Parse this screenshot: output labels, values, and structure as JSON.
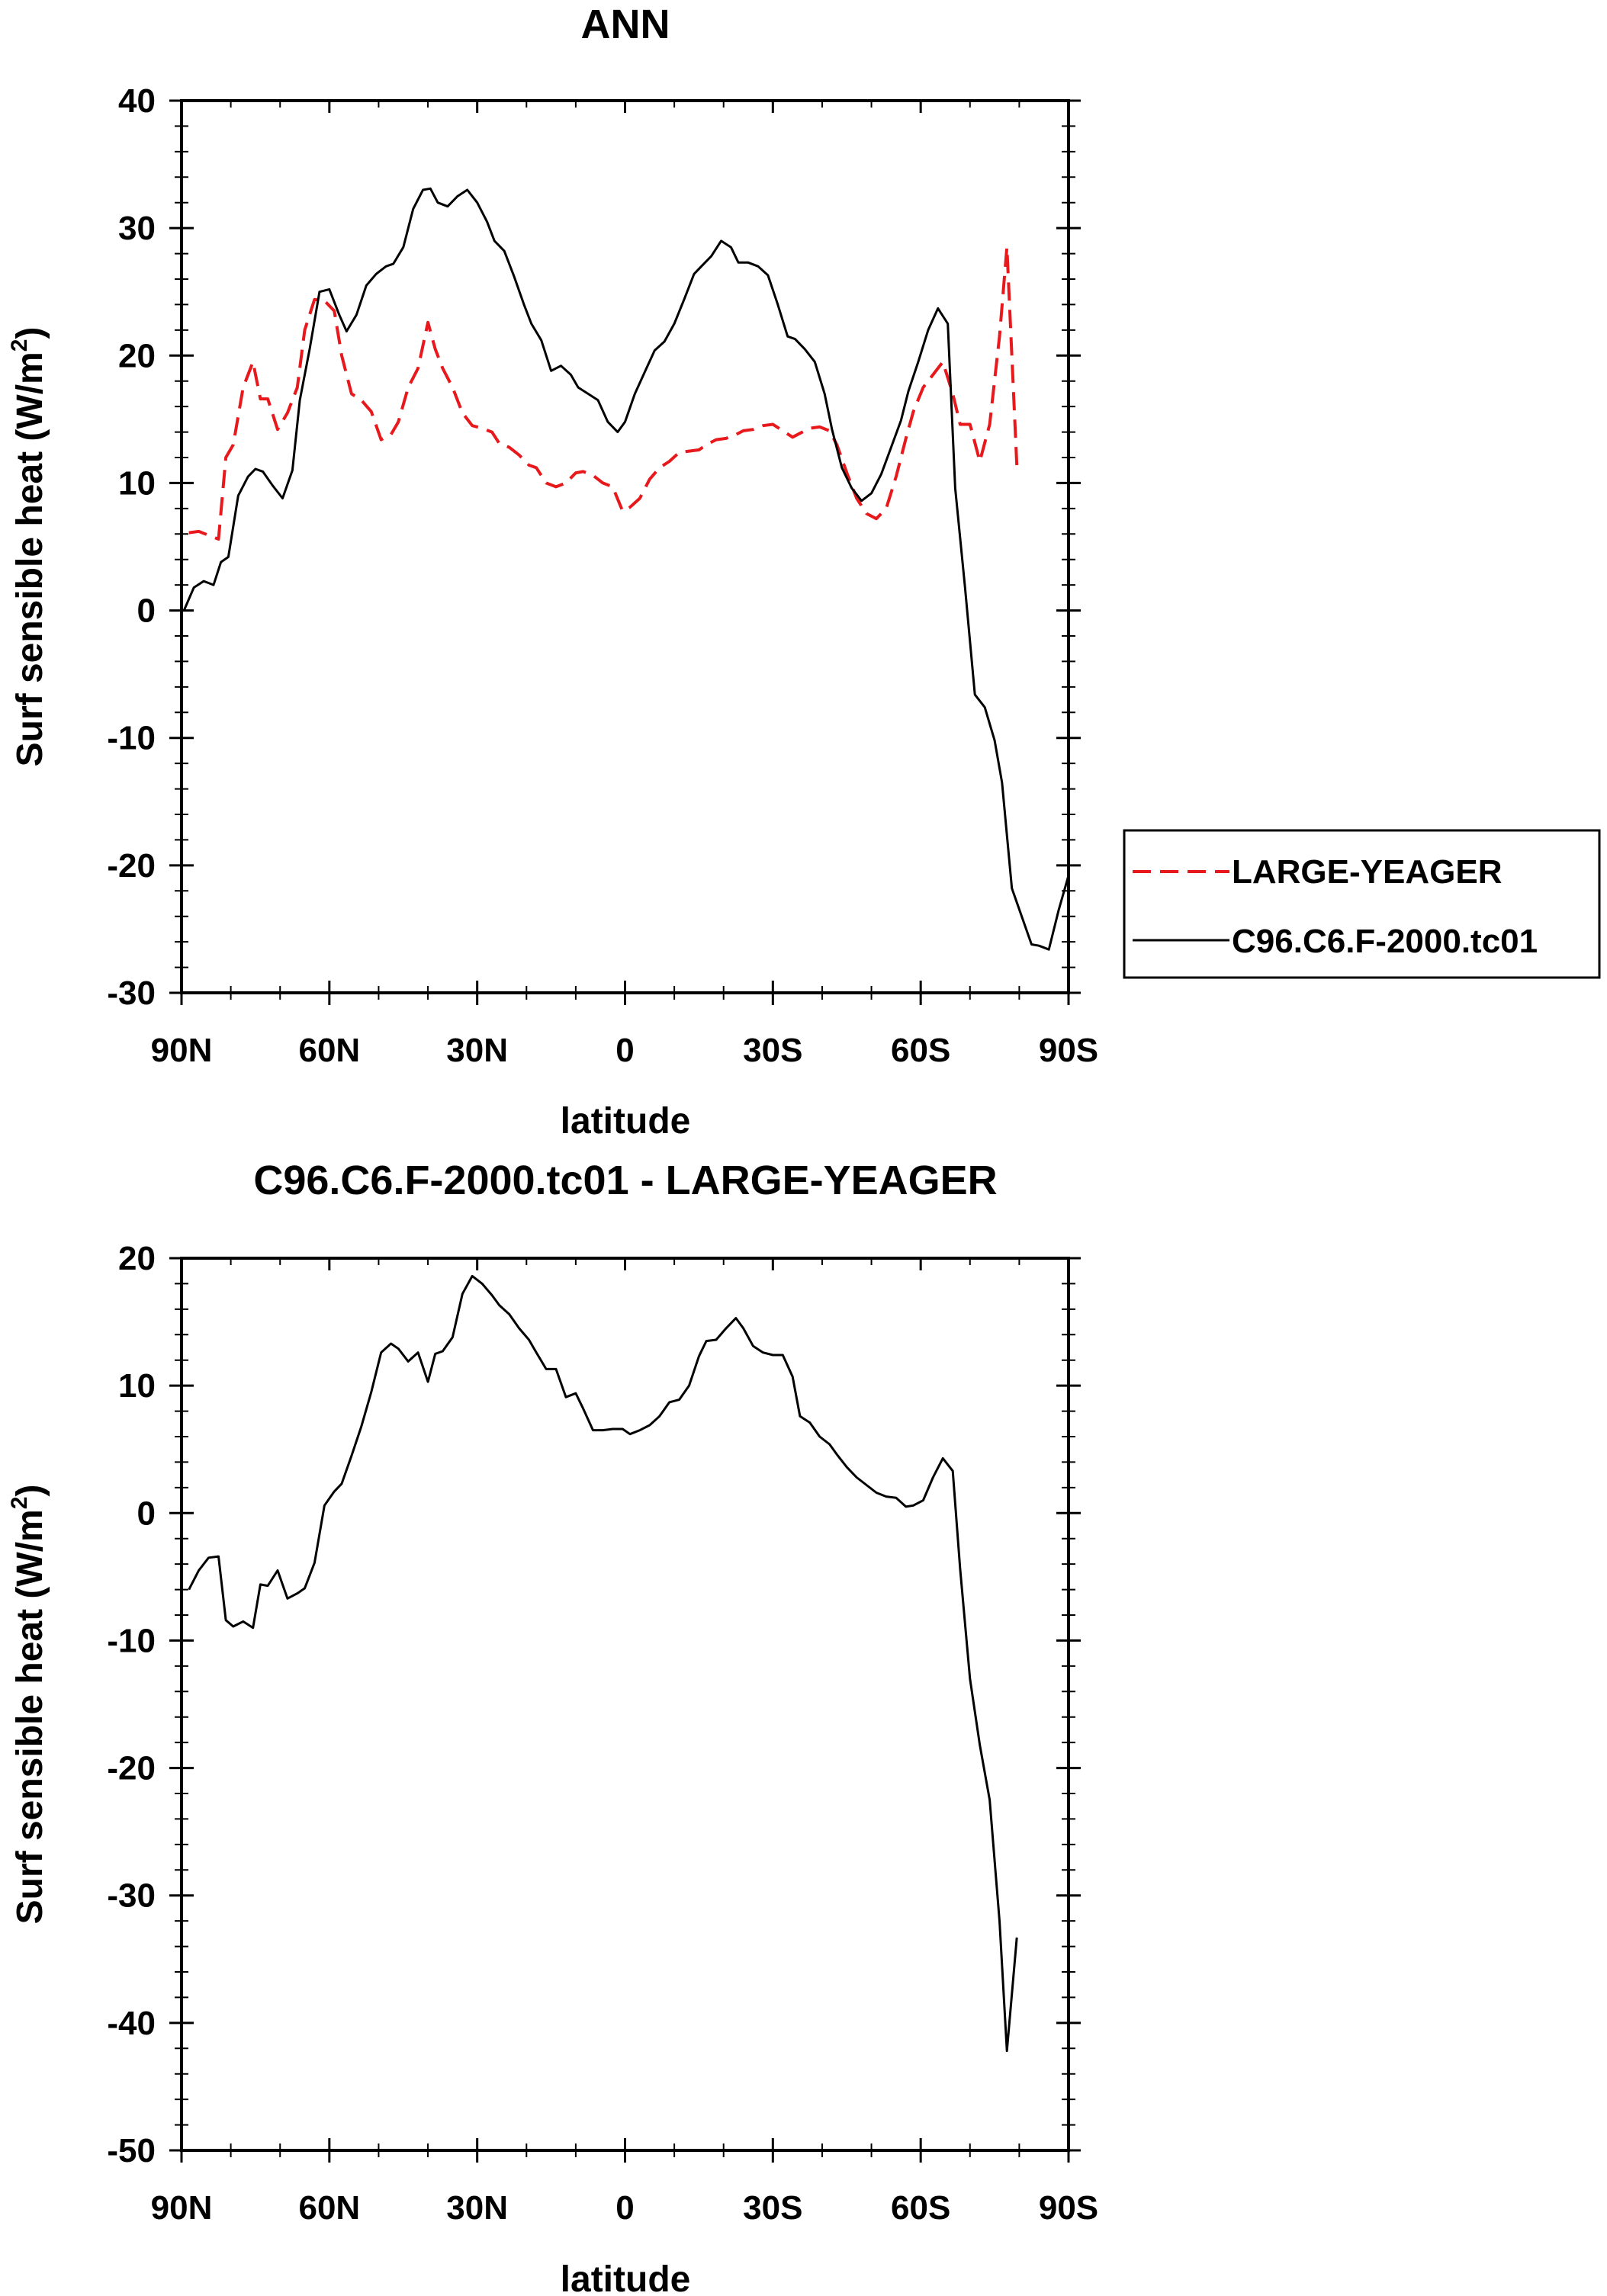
{
  "chart_data": [
    {
      "type": "line",
      "title": "ANN",
      "xlabel": "latitude",
      "ylabel": "Surf sensible heat (W/m",
      "ylabel_sup": "2",
      "ylabel_end": ")",
      "xlim": [
        -90,
        90
      ],
      "ylim": [
        -30,
        40
      ],
      "xticks": [
        {
          "v": -90,
          "label": "90N"
        },
        {
          "v": -60,
          "label": "60N"
        },
        {
          "v": -30,
          "label": "30N"
        },
        {
          "v": 0,
          "label": "0"
        },
        {
          "v": 30,
          "label": "30S"
        },
        {
          "v": 60,
          "label": "60S"
        },
        {
          "v": 90,
          "label": "90S"
        }
      ],
      "yticks": [
        {
          "v": 40,
          "label": "40"
        },
        {
          "v": 30,
          "label": "30"
        },
        {
          "v": 20,
          "label": "20"
        },
        {
          "v": 10,
          "label": "10"
        },
        {
          "v": 0,
          "label": "0"
        },
        {
          "v": -10,
          "label": "-10"
        },
        {
          "v": -20,
          "label": "-20"
        },
        {
          "v": -30,
          "label": "-30"
        }
      ],
      "legend": {
        "position": "right",
        "entries": [
          {
            "label": "LARGE-YEAGER",
            "color": "#e8191c",
            "dash": "dashed"
          },
          {
            "label": "C96.C6.F-2000.tc01",
            "color": "#000000",
            "dash": "solid"
          }
        ]
      },
      "series": [
        {
          "name": "LARGE-YEAGER",
          "color": "#e8191c",
          "dash": "dashed",
          "x": [
            -88.5,
            -86.5,
            -84.5,
            -82.5,
            -81,
            -79.5,
            -77.5,
            -75.5,
            -74,
            -72.5,
            -70.5,
            -68.5,
            -66.5,
            -65,
            -63,
            -61,
            -59,
            -57.5,
            -55.5,
            -53.5,
            -51.5,
            -49.5,
            -47.5,
            -46,
            -44,
            -42,
            -40,
            -38.5,
            -37,
            -35,
            -33,
            -31,
            -29,
            -27,
            -25.5,
            -23.5,
            -21.5,
            -19.5,
            -18,
            -16,
            -14,
            -12,
            -10,
            -8.5,
            -6.5,
            -4.5,
            -2.5,
            -0.5,
            1,
            3,
            5,
            7,
            9,
            11,
            13,
            15,
            16.5,
            18.5,
            20.5,
            22.5,
            24,
            26,
            28,
            30,
            32,
            34,
            35.5,
            37.5,
            39.5,
            41.5,
            43,
            45,
            47,
            49,
            51,
            53,
            55,
            57,
            58.5,
            60.5,
            62.5,
            64.5,
            66.5,
            68,
            70,
            72,
            74,
            76,
            77.5,
            79.5
          ],
          "y": [
            6.1,
            6.2,
            5.9,
            5.6,
            12,
            13,
            17.5,
            19.5,
            16.6,
            16.6,
            14.2,
            15.5,
            17.5,
            22,
            24.4,
            24.3,
            23.5,
            20,
            17,
            16.5,
            15.6,
            13.4,
            13.8,
            14.8,
            17.5,
            19,
            22.6,
            20.5,
            19,
            17.5,
            15.5,
            14.5,
            14.3,
            14,
            13.1,
            12.8,
            12.2,
            11.4,
            11.2,
            10,
            9.7,
            10,
            10.8,
            10.9,
            10.6,
            10,
            9.7,
            7.8,
            8.1,
            8.8,
            10.3,
            11.2,
            11.7,
            12.4,
            12.5,
            12.6,
            13,
            13.4,
            13.5,
            13.8,
            14.1,
            14.2,
            14.5,
            14.6,
            14.1,
            13.6,
            13.9,
            14.3,
            14.4,
            14.1,
            13,
            10.8,
            8.8,
            7.6,
            7.2,
            8,
            10.5,
            13.5,
            15.6,
            17.5,
            18.5,
            19.5,
            17,
            14.6,
            14.6,
            11.7,
            14.6,
            21.5,
            28.5,
            11.4
          ]
        },
        {
          "name": "C96.C6.F-2000.tc01",
          "color": "#000000",
          "dash": "solid",
          "x": [
            -89.5,
            -87.5,
            -85.5,
            -83.5,
            -82,
            -80.5,
            -78.5,
            -76.5,
            -75,
            -73.5,
            -71.5,
            -69.5,
            -67.5,
            -66,
            -64,
            -62,
            -60,
            -58,
            -56.5,
            -54.5,
            -52.5,
            -50.5,
            -48.5,
            -47,
            -45,
            -43,
            -41,
            -39.5,
            -38,
            -36,
            -34,
            -32,
            -30,
            -28,
            -26.5,
            -24.5,
            -22.5,
            -20.5,
            -19,
            -17,
            -15,
            -13,
            -11,
            -9.5,
            -7.5,
            -5.5,
            -3.5,
            -1.5,
            0,
            2,
            4,
            6,
            8,
            10,
            12,
            14,
            15.5,
            17.5,
            19.5,
            21.5,
            23,
            25,
            27,
            29,
            31,
            33,
            34.5,
            36.5,
            38.5,
            40.5,
            42,
            44,
            46,
            48,
            50,
            52,
            54,
            56,
            57.5,
            59.5,
            61.5,
            63.5,
            65.5,
            67,
            69,
            71,
            73,
            75,
            76.5,
            78.5,
            80.5,
            82.5,
            84,
            86,
            88,
            90
          ],
          "y": [
            0,
            1.8,
            2.3,
            2,
            3.8,
            4.2,
            9,
            10.5,
            11.1,
            10.9,
            9.8,
            8.8,
            11,
            16.5,
            20.5,
            25,
            25.2,
            23.2,
            21.9,
            23.2,
            25.5,
            26.4,
            27,
            27.2,
            28.5,
            31.5,
            33,
            33.1,
            32,
            31.7,
            32.5,
            33,
            32,
            30.5,
            29,
            28.2,
            26.2,
            24,
            22.5,
            21.2,
            18.8,
            19.2,
            18.5,
            17.5,
            17,
            16.5,
            14.8,
            14,
            14.8,
            17,
            18.7,
            20.4,
            21.1,
            22.5,
            24.4,
            26.4,
            27,
            27.8,
            29,
            28.5,
            27.3,
            27.3,
            27,
            26.3,
            24,
            21.5,
            21.3,
            20.5,
            19.5,
            17,
            14.2,
            11.2,
            9.6,
            8.6,
            9.2,
            10.7,
            12.8,
            14.9,
            17.2,
            19.5,
            22,
            23.7,
            22.5,
            9.6,
            1.8,
            -6.6,
            -7.6,
            -10.2,
            -13.5,
            -21.8,
            -24,
            -26.2,
            -26.3,
            -26.6,
            -23.5,
            -20.8
          ]
        }
      ]
    },
    {
      "type": "line",
      "title": "C96.C6.F-2000.tc01 - LARGE-YEAGER",
      "xlabel": "latitude",
      "ylabel": "Surf sensible heat (W/m",
      "ylabel_sup": "2",
      "ylabel_end": ")",
      "xlim": [
        -90,
        90
      ],
      "ylim": [
        -50,
        20
      ],
      "xticks": [
        {
          "v": -90,
          "label": "90N"
        },
        {
          "v": -60,
          "label": "60N"
        },
        {
          "v": -30,
          "label": "30N"
        },
        {
          "v": 0,
          "label": "0"
        },
        {
          "v": 30,
          "label": "30S"
        },
        {
          "v": 60,
          "label": "60S"
        },
        {
          "v": 90,
          "label": "90S"
        }
      ],
      "yticks": [
        {
          "v": 20,
          "label": "20"
        },
        {
          "v": 10,
          "label": "10"
        },
        {
          "v": 0,
          "label": "0"
        },
        {
          "v": -10,
          "label": "-10"
        },
        {
          "v": -20,
          "label": "-20"
        },
        {
          "v": -30,
          "label": "-30"
        },
        {
          "v": -40,
          "label": "-40"
        },
        {
          "v": -50,
          "label": "-50"
        }
      ],
      "series": [
        {
          "name": "C96.C6.F-2000.tc01 - LARGE-YEAGER",
          "color": "#000000",
          "dash": "solid",
          "x": [
            -88.5,
            -86.5,
            -84.5,
            -82.5,
            -81,
            -79.5,
            -77.5,
            -75.5,
            -74,
            -72.5,
            -70.5,
            -68.5,
            -66.5,
            -65,
            -63,
            -61,
            -59,
            -57.5,
            -55.5,
            -53.5,
            -51.5,
            -49.5,
            -47.5,
            -46,
            -44,
            -42,
            -40,
            -38.5,
            -37,
            -35,
            -33,
            -31,
            -29,
            -27,
            -25.5,
            -23.5,
            -21.5,
            -19.5,
            -18,
            -16,
            -14,
            -12,
            -10,
            -8.5,
            -6.5,
            -4.5,
            -2.5,
            -0.5,
            1,
            3,
            5,
            7,
            9,
            11,
            13,
            15,
            16.5,
            18.5,
            20.5,
            22.5,
            24,
            26,
            28,
            30,
            32,
            34,
            35.5,
            37.5,
            39.5,
            41.5,
            43,
            45,
            47,
            49,
            51,
            53,
            55,
            57,
            58.5,
            60.5,
            62.5,
            64.5,
            66.5,
            68,
            70,
            72,
            74,
            76,
            77.5,
            79.5
          ],
          "y": [
            -6,
            -4.5,
            -3.5,
            -3.4,
            -8.4,
            -8.9,
            -8.5,
            -9,
            -5.6,
            -5.7,
            -4.5,
            -6.7,
            -6.3,
            -5.9,
            -3.9,
            0.6,
            1.7,
            2.3,
            4.5,
            6.8,
            9.5,
            12.6,
            13.3,
            12.9,
            11.9,
            12.6,
            10.3,
            12.5,
            12.7,
            13.8,
            17.2,
            18.6,
            18,
            17.1,
            16.3,
            15.6,
            14.5,
            13.6,
            12.6,
            11.3,
            11.3,
            9.1,
            9.4,
            8.2,
            6.5,
            6.5,
            6.6,
            6.6,
            6.2,
            6.5,
            6.9,
            7.6,
            8.7,
            8.9,
            10,
            12.3,
            13.5,
            13.6,
            14.5,
            15.3,
            14.5,
            13.1,
            12.6,
            12.4,
            12.4,
            10.7,
            7.6,
            7.1,
            6,
            5.4,
            4.6,
            3.6,
            2.8,
            2.2,
            1.6,
            1.3,
            1.2,
            0.5,
            0.6,
            1,
            2.8,
            4.3,
            3.3,
            -4.4,
            -13,
            -18.2,
            -22.5,
            -32,
            -42.2,
            -33.3
          ]
        }
      ]
    }
  ]
}
